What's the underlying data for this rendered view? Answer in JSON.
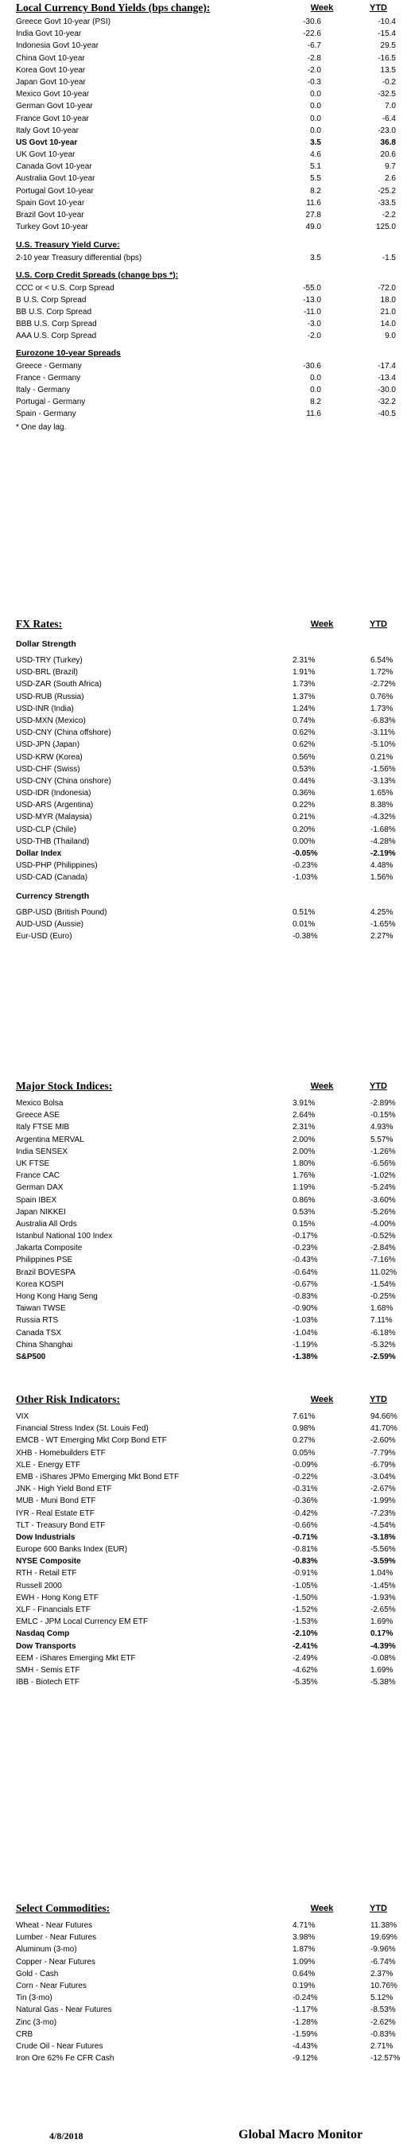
{
  "bonds": {
    "title": "Local Currency Bond Yields (bps change):",
    "col_week": "Week",
    "col_ytd": "YTD",
    "rows": [
      {
        "label": "Greece Govt 10-year (PSI)",
        "week": "-30.6",
        "ytd": "-10.4"
      },
      {
        "label": "India Govt 10-year",
        "week": "-22.6",
        "ytd": "-15.4"
      },
      {
        "label": "Indonesia Govt 10-year",
        "week": "-6.7",
        "ytd": "29.5"
      },
      {
        "label": "China Govt 10-year",
        "week": "-2.8",
        "ytd": "-16.5"
      },
      {
        "label": "Korea Govt 10-year",
        "week": "-2.0",
        "ytd": "13.5"
      },
      {
        "label": "Japan Govt 10-year",
        "week": "-0.3",
        "ytd": "-0.2"
      },
      {
        "label": "Mexico Govt 10-year",
        "week": "0.0",
        "ytd": "-32.5"
      },
      {
        "label": "German Govt 10-year",
        "week": "0.0",
        "ytd": "7.0"
      },
      {
        "label": "France Govt 10-year",
        "week": "0.0",
        "ytd": "-6.4"
      },
      {
        "label": "Italy Govt 10-year",
        "week": "0.0",
        "ytd": "-23.0"
      },
      {
        "label": "US Govt 10-year",
        "week": "3.5",
        "ytd": "36.8",
        "bold": true
      },
      {
        "label": "UK Govt 10-year",
        "week": "4.6",
        "ytd": "20.6"
      },
      {
        "label": "Canada Govt 10-year",
        "week": "5.1",
        "ytd": "9.7"
      },
      {
        "label": "Australia Govt 10-year",
        "week": "5.5",
        "ytd": "2.6"
      },
      {
        "label": "Portugal Govt 10-year",
        "week": "8.2",
        "ytd": "-25.2"
      },
      {
        "label": "Spain Govt 10-year",
        "week": "11.6",
        "ytd": "-33.5"
      },
      {
        "label": "Brazil Govt 10-year",
        "week": "27.8",
        "ytd": "-2.2"
      },
      {
        "label": "Turkey Govt 10-year",
        "week": "49.0",
        "ytd": "125.0"
      }
    ]
  },
  "curve": {
    "title": "U.S. Treasury Yield Curve:",
    "rows": [
      {
        "label": "2-10 year Treasury differential (bps)",
        "week": "3.5",
        "ytd": "-1.5"
      }
    ]
  },
  "credit": {
    "title": "U.S. Corp Credit Spreads (change bps *):",
    "rows": [
      {
        "label": "CCC or < U.S. Corp Spread",
        "week": "-55.0",
        "ytd": "-72.0"
      },
      {
        "label": "B U.S. Corp Spread",
        "week": "-13.0",
        "ytd": "18.0"
      },
      {
        "label": "BB U.S. Corp Spread",
        "week": "-11.0",
        "ytd": "21.0"
      },
      {
        "label": "BBB U.S. Corp Spread",
        "week": "-3.0",
        "ytd": "14.0"
      },
      {
        "label": "AAA U.S. Corp Spread",
        "week": "-2.0",
        "ytd": "9.0"
      }
    ]
  },
  "eurozone": {
    "title": "Eurozone 10-year Spreads",
    "rows": [
      {
        "label": "Greece - Germany",
        "week": "-30.6",
        "ytd": "-17.4"
      },
      {
        "label": "France - Germany",
        "week": "0.0",
        "ytd": "-13.4"
      },
      {
        "label": "Italy - Germany",
        "week": "0.0",
        "ytd": "-30.0"
      },
      {
        "label": "Portugal - Germany",
        "week": "8.2",
        "ytd": "-32.2"
      },
      {
        "label": "Spain - Germany",
        "week": "11.6",
        "ytd": "-40.5"
      }
    ],
    "note": "* One day lag."
  },
  "fx": {
    "title": "FX Rates:",
    "col_week": "Week",
    "col_ytd": "YTD",
    "strength_title": "Dollar Strength",
    "strength_rows": [
      {
        "label": "USD-TRY (Turkey)",
        "week": "2.31%",
        "ytd": "6.54%"
      },
      {
        "label": "USD-BRL (Brazil)",
        "week": "1.91%",
        "ytd": "1.72%"
      },
      {
        "label": "USD-ZAR (South Africa)",
        "week": "1.73%",
        "ytd": "-2.72%"
      },
      {
        "label": "USD-RUB (Russia)",
        "week": "1.37%",
        "ytd": "0.76%"
      },
      {
        "label": "USD-INR (India)",
        "week": "1.24%",
        "ytd": "1.73%"
      },
      {
        "label": "USD-MXN  (Mexico)",
        "week": "0.74%",
        "ytd": "-6.83%"
      },
      {
        "label": "USD-CNY (China offshore)",
        "week": "0.62%",
        "ytd": "-3.11%"
      },
      {
        "label": "USD-JPN (Japan)",
        "week": "0.62%",
        "ytd": "-5.10%"
      },
      {
        "label": "USD-KRW (Korea)",
        "week": "0.56%",
        "ytd": "0.21%"
      },
      {
        "label": "USD-CHF (Swiss)",
        "week": "0.53%",
        "ytd": "-1.56%"
      },
      {
        "label": "USD-CNY (China onshore)",
        "week": "0.44%",
        "ytd": "-3.13%"
      },
      {
        "label": "USD-IDR (Indonesia)",
        "week": "0.36%",
        "ytd": "1.65%"
      },
      {
        "label": "USD-ARS (Argentina)",
        "week": "0.22%",
        "ytd": "8.38%"
      },
      {
        "label": "USD-MYR (Malaysia)",
        "week": "0.21%",
        "ytd": "-4.32%"
      },
      {
        "label": "USD-CLP (Chile)",
        "week": "0.20%",
        "ytd": "-1.68%"
      },
      {
        "label": "USD-THB  (Thailand)",
        "week": "0.00%",
        "ytd": "-4.28%"
      },
      {
        "label": "Dollar Index",
        "week": "-0.05%",
        "ytd": "-2.19%",
        "bold": true
      },
      {
        "label": "USD-PHP (Philippines)",
        "week": "-0.23%",
        "ytd": "4.48%"
      },
      {
        "label": "USD-CAD (Canada)",
        "week": "-1.03%",
        "ytd": "1.56%"
      }
    ],
    "currency_title": "Currency Strength",
    "currency_rows": [
      {
        "label": "GBP-USD (British Pound)",
        "week": "0.51%",
        "ytd": "4.25%"
      },
      {
        "label": "AUD-USD (Aussie)",
        "week": "0.01%",
        "ytd": "-1.65%"
      },
      {
        "label": "Eur-USD (Euro)",
        "week": "-0.38%",
        "ytd": "2.27%"
      }
    ]
  },
  "stocks": {
    "title": "Major Stock Indices:",
    "col_week": "Week",
    "col_ytd": "YTD",
    "rows": [
      {
        "label": "Mexico Bolsa",
        "week": "3.91%",
        "ytd": "-2.89%"
      },
      {
        "label": "Greece ASE",
        "week": "2.64%",
        "ytd": "-0.15%"
      },
      {
        "label": "Italy FTSE MIB",
        "week": "2.31%",
        "ytd": "4.93%"
      },
      {
        "label": "Argentina MERVAL",
        "week": "2.00%",
        "ytd": "5.57%"
      },
      {
        "label": "India SENSEX",
        "week": "2.00%",
        "ytd": "-1.26%"
      },
      {
        "label": "UK FTSE",
        "week": "1.80%",
        "ytd": "-6.56%"
      },
      {
        "label": "France CAC",
        "week": "1.76%",
        "ytd": "-1.02%"
      },
      {
        "label": "German DAX",
        "week": "1.19%",
        "ytd": "-5.24%"
      },
      {
        "label": "Spain IBEX",
        "week": "0.86%",
        "ytd": "-3.60%"
      },
      {
        "label": "Japan NIKKEI",
        "week": "0.53%",
        "ytd": "-5.26%"
      },
      {
        "label": "Australia All Ords",
        "week": "0.15%",
        "ytd": "-4.00%"
      },
      {
        "label": "Istanbul National 100 Index",
        "week": "-0.17%",
        "ytd": "-0.52%"
      },
      {
        "label": "Jakarta Composite",
        "week": "-0.23%",
        "ytd": "-2.84%"
      },
      {
        "label": "Philippines PSE",
        "week": "-0.43%",
        "ytd": "-7.16%"
      },
      {
        "label": "Brazil BOVESPA",
        "week": "-0.64%",
        "ytd": "11.02%"
      },
      {
        "label": "Korea KOSPI",
        "week": "-0.67%",
        "ytd": "-1.54%"
      },
      {
        "label": "Hong Kong Hang Seng",
        "week": "-0.83%",
        "ytd": "-0.25%"
      },
      {
        "label": "Taiwan  TWSE",
        "week": "-0.90%",
        "ytd": "1.68%"
      },
      {
        "label": "Russia RTS",
        "week": "-1.03%",
        "ytd": "7.11%"
      },
      {
        "label": "Canada TSX",
        "week": "-1.04%",
        "ytd": "-6.18%"
      },
      {
        "label": "China Shanghai",
        "week": "-1.19%",
        "ytd": "-5.32%"
      },
      {
        "label": "S&P500",
        "week": "-1.38%",
        "ytd": "-2.59%",
        "bold": true
      }
    ]
  },
  "risk": {
    "title": "Other Risk Indicators:",
    "col_week": "Week",
    "col_ytd": "YTD",
    "rows": [
      {
        "label": "VIX",
        "week": "7.61%",
        "ytd": "94.66%"
      },
      {
        "label": "Financial Stress Index (St. Louis Fed)",
        "week": "0.98%",
        "ytd": "41.70%"
      },
      {
        "label": "EMCB - WT Emerging Mkt Corp Bond ETF",
        "week": "0.27%",
        "ytd": "-2.60%"
      },
      {
        "label": "XHB - Homebuilders ETF",
        "week": "0.05%",
        "ytd": "-7.79%"
      },
      {
        "label": "XLE - Energy ETF",
        "week": "-0.09%",
        "ytd": "-6.79%"
      },
      {
        "label": "EMB - iShares JPMo Emerging Mkt Bond ETF",
        "week": "-0.22%",
        "ytd": "-3.04%"
      },
      {
        "label": "JNK - High Yield Bond ETF",
        "week": "-0.31%",
        "ytd": "-2.67%"
      },
      {
        "label": "MUB - Muni Bond ETF",
        "week": "-0.36%",
        "ytd": "-1.99%"
      },
      {
        "label": "IYR - Real Estate ETF",
        "week": "-0.42%",
        "ytd": "-7.23%"
      },
      {
        "label": "TLT - Treasury Bond ETF",
        "week": "-0.66%",
        "ytd": "-4.54%"
      },
      {
        "label": "Dow Industrials",
        "week": "-0.71%",
        "ytd": "-3.18%",
        "bold": true
      },
      {
        "label": "Europe 600 Banks Index (EUR)",
        "week": "-0.81%",
        "ytd": "-5.56%"
      },
      {
        "label": "NYSE Composite",
        "week": "-0.83%",
        "ytd": "-3.59%",
        "bold": true
      },
      {
        "label": "RTH - Retail ETF",
        "week": "-0.91%",
        "ytd": "1.04%"
      },
      {
        "label": "Russell 2000",
        "week": "-1.05%",
        "ytd": "-1.45%"
      },
      {
        "label": "EWH - Hong Kong ETF",
        "week": "-1.50%",
        "ytd": "-1.93%"
      },
      {
        "label": "XLF - Financials ETF",
        "week": "-1.52%",
        "ytd": "-2.65%"
      },
      {
        "label": "EMLC - JPM Local Currency EM ETF",
        "week": "-1.53%",
        "ytd": "1.69%"
      },
      {
        "label": "Nasdaq Comp",
        "week": "-2.10%",
        "ytd": "0.17%",
        "bold": true
      },
      {
        "label": "Dow Transports",
        "week": "-2.41%",
        "ytd": "-4.39%",
        "bold": true
      },
      {
        "label": "EEM - iShares Emerging Mkt ETF",
        "week": "-2.49%",
        "ytd": "-0.08%"
      },
      {
        "label": "SMH - Semis ETF",
        "week": "-4.62%",
        "ytd": "1.69%"
      },
      {
        "label": "IBB - Biotech ETF",
        "week": "-5.35%",
        "ytd": "-5.38%"
      }
    ]
  },
  "commod": {
    "title": "Select Commodities:",
    "col_week": "Week",
    "col_ytd": "YTD",
    "rows": [
      {
        "label": "Wheat - Near Futures",
        "week": "4.71%",
        "ytd": "11.38%"
      },
      {
        "label": "Lumber - Near Futures",
        "week": "3.98%",
        "ytd": "19.69%"
      },
      {
        "label": "Aluminum (3-mo)",
        "week": "1.87%",
        "ytd": "-9.96%"
      },
      {
        "label": "Copper - Near Futures",
        "week": "1.09%",
        "ytd": "-6.74%"
      },
      {
        "label": "Gold - Cash",
        "week": "0.64%",
        "ytd": "2.37%"
      },
      {
        "label": "Corn - Near Futures",
        "week": "0.19%",
        "ytd": "10.76%"
      },
      {
        "label": "Tin (3-mo)",
        "week": "-0.24%",
        "ytd": "5.12%"
      },
      {
        "label": "Natural Gas - Near Futures",
        "week": "-1.17%",
        "ytd": "-8.53%"
      },
      {
        "label": "Zinc (3-mo)",
        "week": "-1.28%",
        "ytd": "-2.62%"
      },
      {
        "label": "CRB",
        "week": "-1.59%",
        "ytd": "-0.83%"
      },
      {
        "label": "Crude Oil - Near Futures",
        "week": "-4.43%",
        "ytd": "2.71%"
      },
      {
        "label": "Iron Ore 62% Fe CFR Cash",
        "week": "-9.12%",
        "ytd": "-12.57%"
      }
    ]
  },
  "footer": {
    "date": "4/8/2018",
    "brand": "Global Macro Monitor"
  }
}
